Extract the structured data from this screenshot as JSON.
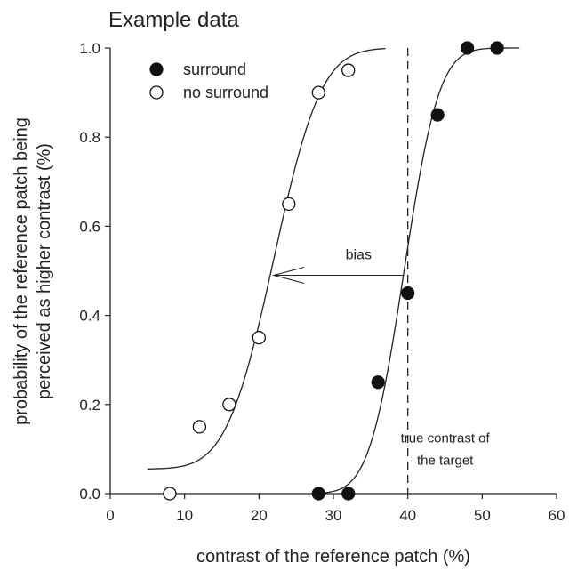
{
  "chart_data": {
    "type": "scatter",
    "title": "Example data",
    "xlabel": "contrast of the reference patch (%)",
    "ylabel_lines": [
      "probability of the reference patch being",
      "perceived as higher contrast (%)"
    ],
    "xlim": [
      0,
      60
    ],
    "ylim": [
      0,
      1
    ],
    "xticks": [
      0,
      10,
      20,
      30,
      40,
      50,
      60
    ],
    "yticks": [
      "0.0",
      "0.2",
      "0.4",
      "0.6",
      "0.8",
      "1.0"
    ],
    "grid": false,
    "legend_position": "top-left",
    "series": [
      {
        "name": "surround",
        "marker": "filled-circle",
        "points": [
          {
            "x": 28,
            "y": 0.0
          },
          {
            "x": 32,
            "y": 0.0
          },
          {
            "x": 36,
            "y": 0.25
          },
          {
            "x": 40,
            "y": 0.45
          },
          {
            "x": 44,
            "y": 0.85
          },
          {
            "x": 48,
            "y": 1.0
          },
          {
            "x": 52,
            "y": 1.0
          }
        ],
        "fit": {
          "type": "cumulative-gaussian",
          "mu": 39.5,
          "sigma": 3.7,
          "x_range": [
            27.5,
            55
          ]
        }
      },
      {
        "name": "no surround",
        "marker": "open-circle",
        "points": [
          {
            "x": 8,
            "y": 0.0
          },
          {
            "x": 12,
            "y": 0.15
          },
          {
            "x": 16,
            "y": 0.2
          },
          {
            "x": 20,
            "y": 0.35
          },
          {
            "x": 24,
            "y": 0.65
          },
          {
            "x": 28,
            "y": 0.9
          },
          {
            "x": 32,
            "y": 0.95
          }
        ],
        "fit": {
          "type": "cumulative-gaussian",
          "mu": 22.0,
          "sigma": 5.0,
          "floor": 0.055,
          "x_range": [
            5,
            37
          ]
        }
      }
    ],
    "reference_line": {
      "x": 40,
      "style": "dashed",
      "label_lines": [
        "true contrast of",
        "the target"
      ]
    },
    "arrow": {
      "from": {
        "x": 39.5,
        "y": 0.49
      },
      "to": {
        "x": 22,
        "y": 0.49
      },
      "label": "bias"
    }
  }
}
